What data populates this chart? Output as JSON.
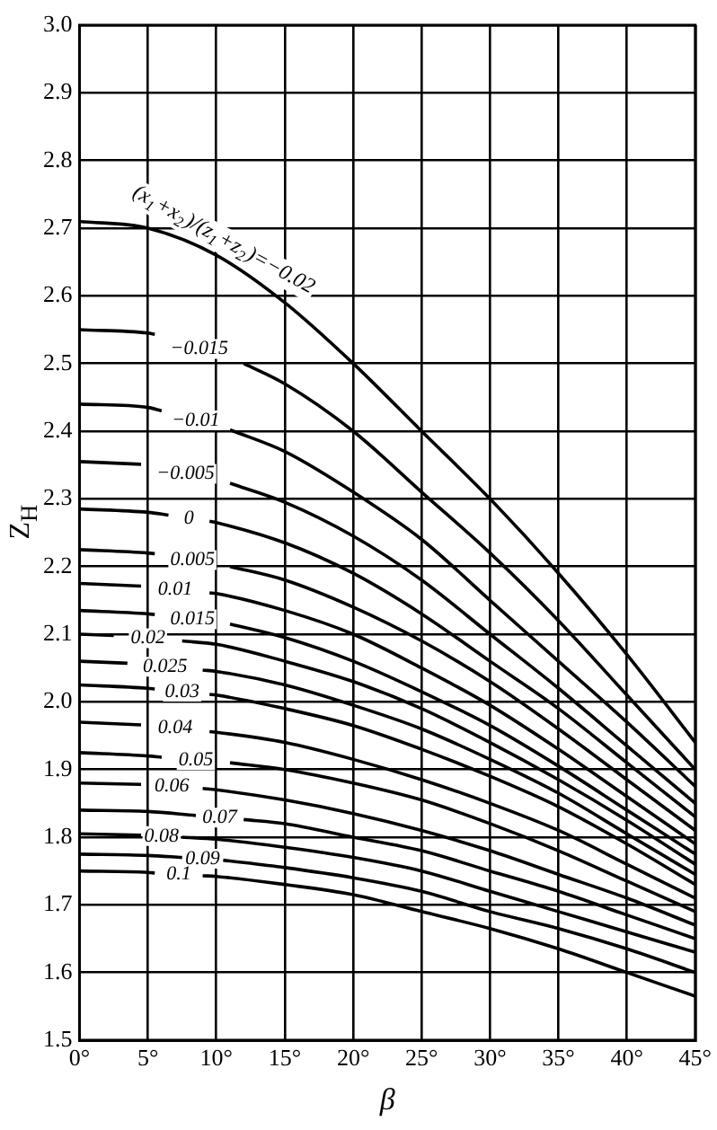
{
  "chart_data": {
    "type": "line",
    "xlabel": "β",
    "ylabel": "Z$_{H}$",
    "x": [
      0,
      5,
      10,
      15,
      20,
      25,
      30,
      35,
      40,
      45
    ],
    "xlim": [
      0,
      45
    ],
    "xticks": [
      {
        "value": 0,
        "label": "0°"
      },
      {
        "value": 5,
        "label": "5°"
      },
      {
        "value": 10,
        "label": "10°"
      },
      {
        "value": 15,
        "label": "15°"
      },
      {
        "value": 20,
        "label": "20°"
      },
      {
        "value": 25,
        "label": "25°"
      },
      {
        "value": 30,
        "label": "30°"
      },
      {
        "value": 35,
        "label": "35°"
      },
      {
        "value": 40,
        "label": "40°"
      },
      {
        "value": 45,
        "label": "45°"
      }
    ],
    "ylim": [
      1.5,
      3.0
    ],
    "yticks": [
      {
        "value": 1.5,
        "label": "1.5"
      },
      {
        "value": 1.6,
        "label": "1.6"
      },
      {
        "value": 1.7,
        "label": "1.7"
      },
      {
        "value": 1.8,
        "label": "1.8"
      },
      {
        "value": 1.9,
        "label": "1.9"
      },
      {
        "value": 2.0,
        "label": "2.0"
      },
      {
        "value": 2.1,
        "label": "2.1"
      },
      {
        "value": 2.2,
        "label": "2.2"
      },
      {
        "value": 2.3,
        "label": "2.3"
      },
      {
        "value": 2.4,
        "label": "2.4"
      },
      {
        "value": 2.5,
        "label": "2.5"
      },
      {
        "value": 2.6,
        "label": "2.6"
      },
      {
        "value": 2.7,
        "label": "2.7"
      },
      {
        "value": 2.8,
        "label": "2.8"
      },
      {
        "value": 2.9,
        "label": "2.9"
      },
      {
        "value": 3.0,
        "label": "3.0"
      }
    ],
    "grid": true,
    "legend": false,
    "marker": "none",
    "line_style": "solid",
    "series": [
      {
        "name": "(x$_{1}$+x$_{2}$)/(z$_{1}$+z$_{2}$)=−0.02",
        "color": "#000000",
        "values": [
          2.71,
          2.7,
          2.66,
          2.59,
          2.5,
          2.4,
          2.3,
          2.19,
          2.07,
          1.94
        ]
      },
      {
        "name": "−0.015",
        "color": "#000000",
        "x": [
          0,
          5,
          5.5,
          9,
          12,
          15,
          20,
          25,
          30,
          35,
          40,
          45
        ],
        "values": [
          2.55,
          2.545,
          2.543,
          null,
          2.5,
          2.47,
          2.4,
          2.31,
          2.22,
          2.12,
          2.01,
          1.9
        ]
      },
      {
        "name": "−0.01",
        "color": "#000000",
        "x": [
          0,
          5,
          6,
          8.5,
          11,
          15,
          20,
          25,
          30,
          35,
          40,
          45
        ],
        "values": [
          2.44,
          2.435,
          2.43,
          null,
          2.402,
          2.37,
          2.31,
          2.24,
          2.15,
          2.06,
          1.97,
          1.875
        ]
      },
      {
        "name": "−0.005",
        "color": "#000000",
        "x": [
          0,
          4.5,
          8,
          11,
          15,
          20,
          25,
          30,
          35,
          40,
          45
        ],
        "values": [
          2.355,
          2.351,
          null,
          2.323,
          2.295,
          2.245,
          2.18,
          2.1,
          2.02,
          1.935,
          1.85
        ]
      },
      {
        "name": "0",
        "color": "#000000",
        "x": [
          0,
          5,
          6.5,
          8,
          9.5,
          10,
          15,
          20,
          25,
          30,
          35,
          40,
          45
        ],
        "values": [
          2.285,
          2.28,
          2.276,
          null,
          2.267,
          2.265,
          2.235,
          2.19,
          2.13,
          2.06,
          1.99,
          1.91,
          1.83
        ]
      },
      {
        "name": "0.005",
        "color": "#000000",
        "x": [
          0,
          5,
          5.5,
          8,
          11,
          15,
          20,
          25,
          30,
          35,
          40,
          45
        ],
        "values": [
          2.225,
          2.22,
          2.219,
          null,
          2.2,
          2.18,
          2.14,
          2.09,
          2.03,
          1.96,
          1.885,
          1.81
        ]
      },
      {
        "name": "0.01",
        "color": "#000000",
        "x": [
          0,
          4.5,
          7,
          9.5,
          10,
          15,
          20,
          25,
          30,
          35,
          40,
          45
        ],
        "values": [
          2.175,
          2.171,
          null,
          2.161,
          2.16,
          2.135,
          2.1,
          2.05,
          1.995,
          1.93,
          1.86,
          1.79
        ]
      },
      {
        "name": "0.015",
        "color": "#000000",
        "x": [
          0,
          5,
          5.5,
          8,
          11,
          15,
          20,
          25,
          30,
          35,
          40,
          45
        ],
        "values": [
          2.135,
          2.13,
          2.129,
          null,
          2.115,
          2.095,
          2.06,
          2.015,
          1.965,
          1.905,
          1.84,
          1.775
        ]
      },
      {
        "name": "0.02",
        "color": "#000000",
        "x": [
          0,
          2.5,
          5,
          7.5,
          10,
          15,
          20,
          25,
          30,
          35,
          40,
          45
        ],
        "values": [
          2.1,
          2.098,
          null,
          2.09,
          2.085,
          2.06,
          2.03,
          1.99,
          1.94,
          1.885,
          1.825,
          1.76
        ]
      },
      {
        "name": "0.025",
        "color": "#000000",
        "x": [
          0,
          3.5,
          6,
          9,
          10,
          15,
          20,
          25,
          30,
          35,
          40,
          45
        ],
        "values": [
          2.06,
          2.057,
          null,
          2.047,
          2.045,
          2.025,
          1.995,
          1.96,
          1.915,
          1.865,
          1.805,
          1.745
        ]
      },
      {
        "name": "0.03",
        "color": "#000000",
        "x": [
          0,
          5,
          5.5,
          7.5,
          9.5,
          10,
          15,
          20,
          25,
          30,
          35,
          40,
          45
        ],
        "values": [
          2.025,
          2.02,
          2.019,
          null,
          2.011,
          2.01,
          1.99,
          1.965,
          1.93,
          1.89,
          1.845,
          1.79,
          1.73
        ]
      },
      {
        "name": "0.04",
        "color": "#000000",
        "x": [
          0,
          4.5,
          7,
          9.5,
          10,
          15,
          20,
          25,
          30,
          35,
          40,
          45
        ],
        "values": [
          1.97,
          1.966,
          null,
          1.956,
          1.955,
          1.94,
          1.915,
          1.885,
          1.85,
          1.81,
          1.76,
          1.71
        ]
      },
      {
        "name": "0.05",
        "color": "#000000",
        "x": [
          0,
          5,
          6,
          8.5,
          11,
          15,
          20,
          25,
          30,
          35,
          40,
          45
        ],
        "values": [
          1.925,
          1.92,
          1.918,
          null,
          1.91,
          1.9,
          1.88,
          1.855,
          1.82,
          1.78,
          1.735,
          1.69
        ]
      },
      {
        "name": "0.06",
        "color": "#000000",
        "x": [
          0,
          4.5,
          7,
          9,
          10,
          15,
          20,
          25,
          30,
          35,
          40,
          45
        ],
        "values": [
          1.88,
          1.878,
          null,
          1.872,
          1.87,
          1.855,
          1.835,
          1.81,
          1.78,
          1.745,
          1.71,
          1.67
        ]
      },
      {
        "name": "0.07",
        "color": "#000000",
        "x": [
          0,
          5,
          8.5,
          10,
          12,
          15,
          20,
          25,
          30,
          35,
          40,
          45
        ],
        "values": [
          1.84,
          1.838,
          1.832,
          null,
          1.826,
          1.82,
          1.8,
          1.78,
          1.75,
          1.72,
          1.685,
          1.65
        ]
      },
      {
        "name": "0.08",
        "color": "#000000",
        "x": [
          0,
          4.5,
          6,
          7.5,
          10,
          15,
          20,
          25,
          30,
          35,
          40,
          45
        ],
        "values": [
          1.805,
          1.803,
          null,
          1.8,
          1.797,
          1.785,
          1.77,
          1.75,
          1.72,
          1.69,
          1.66,
          1.63
        ]
      },
      {
        "name": "0.09",
        "color": "#000000",
        "x": [
          0,
          5,
          7.5,
          9,
          10.5,
          15,
          20,
          25,
          30,
          35,
          40,
          45
        ],
        "values": [
          1.775,
          1.773,
          1.77,
          null,
          1.766,
          1.755,
          1.74,
          1.72,
          1.69,
          1.665,
          1.635,
          1.6
        ]
      },
      {
        "name": "0.1",
        "color": "#000000",
        "x": [
          0,
          5,
          5.5,
          7,
          9,
          10,
          15,
          20,
          25,
          30,
          35,
          40,
          45
        ],
        "values": [
          1.75,
          1.748,
          1.747,
          null,
          1.743,
          1.742,
          1.73,
          1.715,
          1.69,
          1.665,
          1.635,
          1.6,
          1.565
        ]
      }
    ]
  }
}
